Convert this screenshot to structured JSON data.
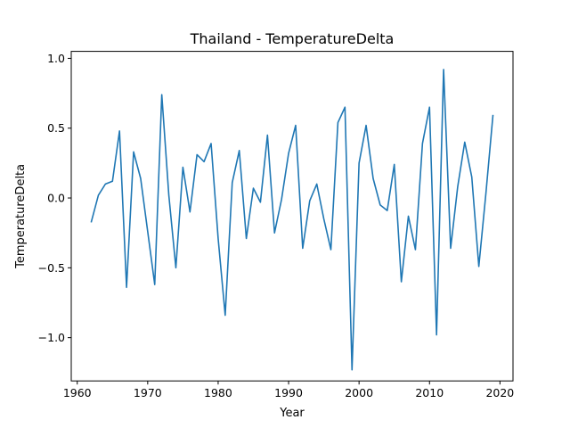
{
  "chart_data": {
    "type": "line",
    "title": "Thailand - TemperatureDelta",
    "xlabel": "Year",
    "ylabel": "TemperatureDelta",
    "xlim": [
      1959.15,
      2021.85
    ],
    "ylim": [
      -1.31,
      1.05
    ],
    "grid": false,
    "line_color": "#1f77b4",
    "x_ticks": [
      1960,
      1970,
      1980,
      1990,
      2000,
      2010,
      2020
    ],
    "x_tick_labels": [
      "1960",
      "1970",
      "1980",
      "1990",
      "2000",
      "2010",
      "2020"
    ],
    "y_ticks": [
      -1.0,
      -0.5,
      0.0,
      0.5,
      1.0
    ],
    "y_tick_labels": [
      "−1.0",
      "−0.5",
      "0.0",
      "0.5",
      "1.0"
    ],
    "series": [
      {
        "x": [
          1962,
          1963,
          1964,
          1965,
          1966,
          1967,
          1968,
          1969,
          1970,
          1971,
          1972,
          1973,
          1974,
          1975,
          1976,
          1977,
          1978,
          1979,
          1980,
          1981,
          1982,
          1983,
          1984,
          1985,
          1986,
          1987,
          1988,
          1989,
          1990,
          1991,
          1992,
          1993,
          1994,
          1995,
          1996,
          1997,
          1998,
          1999,
          2000,
          2001,
          2002,
          2003,
          2004,
          2005,
          2006,
          2007,
          2008,
          2009,
          2010,
          2011,
          2012,
          2013,
          2014,
          2015,
          2016,
          2017,
          2018,
          2019
        ],
        "values": [
          -0.17,
          0.02,
          0.1,
          0.12,
          0.48,
          -0.64,
          0.33,
          0.14,
          -0.24,
          -0.62,
          0.74,
          0.02,
          -0.5,
          0.22,
          -0.1,
          0.31,
          0.26,
          0.39,
          -0.29,
          -0.84,
          0.11,
          0.34,
          -0.29,
          0.07,
          -0.03,
          0.45,
          -0.25,
          -0.01,
          0.32,
          0.52,
          -0.36,
          -0.02,
          0.1,
          -0.15,
          -0.37,
          0.54,
          0.65,
          -1.23,
          0.25,
          0.52,
          0.14,
          -0.05,
          -0.09,
          0.24,
          -0.6,
          -0.13,
          -0.37,
          0.39,
          0.65,
          -0.98,
          0.92,
          -0.36,
          0.08,
          0.4,
          0.15,
          -0.49,
          0.03,
          0.59
        ]
      }
    ]
  }
}
